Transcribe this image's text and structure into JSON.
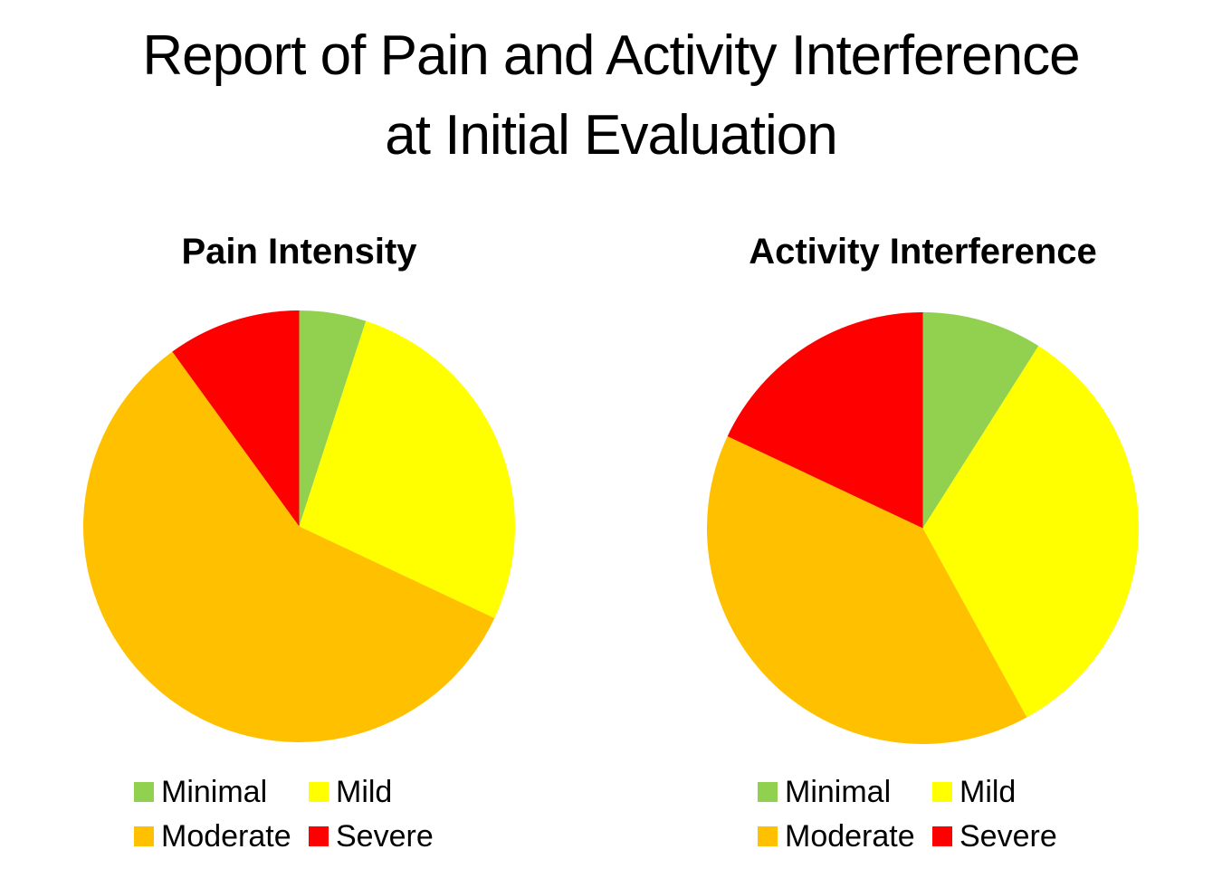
{
  "title": {
    "line1": "Report of Pain and Activity Interference",
    "line2": "at Initial Evaluation"
  },
  "colors": {
    "minimal": "#92D050",
    "mild": "#FFFF00",
    "moderate": "#FFC000",
    "severe": "#FF0000"
  },
  "chart_data": [
    {
      "type": "pie",
      "title": "Pain Intensity",
      "categories": [
        "Minimal",
        "Mild",
        "Moderate",
        "Severe"
      ],
      "values": [
        5,
        27,
        58,
        10
      ],
      "colors": [
        "#92D050",
        "#FFFF00",
        "#FFC000",
        "#FF0000"
      ],
      "start_angle_deg": 0,
      "direction": "clockwise",
      "legend_position": "bottom",
      "data_labels": "none"
    },
    {
      "type": "pie",
      "title": "Activity Interference",
      "categories": [
        "Minimal",
        "Mild",
        "Moderate",
        "Severe"
      ],
      "values": [
        9,
        33,
        40,
        18
      ],
      "colors": [
        "#92D050",
        "#FFFF00",
        "#FFC000",
        "#FF0000"
      ],
      "start_angle_deg": 0,
      "direction": "clockwise",
      "legend_position": "bottom",
      "data_labels": "none"
    }
  ]
}
